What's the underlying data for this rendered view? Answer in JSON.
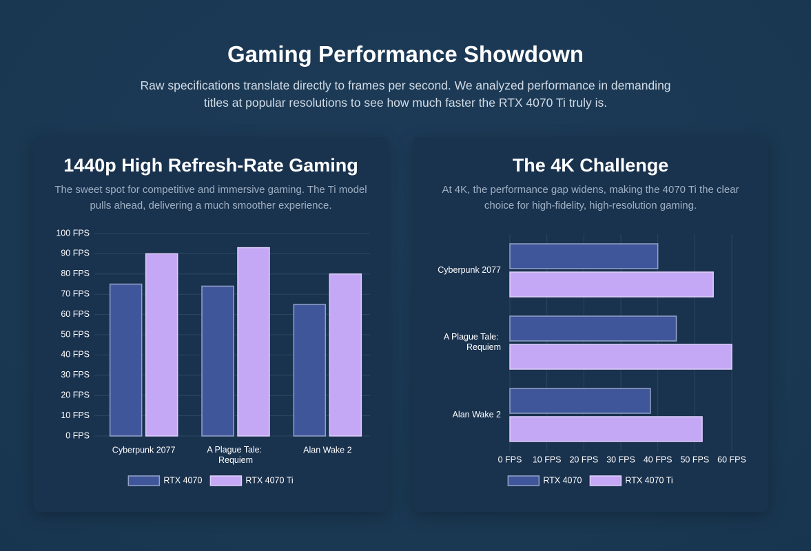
{
  "header": {
    "title": "Gaming Performance Showdown",
    "subtitle": "Raw specifications translate directly to frames per second. We analyzed performance in demanding titles at popular resolutions to see how much faster the RTX 4070 Ti truly is."
  },
  "chart_data": [
    {
      "type": "bar",
      "title": "1440p High Refresh-Rate Gaming",
      "subtitle": "The sweet spot for competitive and immersive gaming. The Ti model pulls ahead, delivering a much smoother experience.",
      "categories": [
        "Cyberpunk 2077",
        "A Plague Tale: Requiem",
        "Alan Wake 2"
      ],
      "series": [
        {
          "name": "RTX 4070",
          "color": "#3f569a",
          "values": [
            75,
            74,
            65
          ]
        },
        {
          "name": "RTX 4070 Ti",
          "color": "#c4a8f5",
          "values": [
            90,
            93,
            80
          ]
        }
      ],
      "ylim": [
        0,
        100
      ],
      "yticks": [
        {
          "value": 0,
          "label": "0 FPS"
        },
        {
          "value": 10,
          "label": "10 FPS"
        },
        {
          "value": 20,
          "label": "20 FPS"
        },
        {
          "value": 30,
          "label": "30 FPS"
        },
        {
          "value": 40,
          "label": "40 FPS"
        },
        {
          "value": 50,
          "label": "50 FPS"
        },
        {
          "value": 60,
          "label": "60 FPS"
        },
        {
          "value": 70,
          "label": "70 FPS"
        },
        {
          "value": 80,
          "label": "80 FPS"
        },
        {
          "value": 90,
          "label": "90 FPS"
        },
        {
          "value": 100,
          "label": "100 FPS"
        }
      ],
      "grid": true,
      "legend": "bottom"
    },
    {
      "type": "barh",
      "title": "The 4K Challenge",
      "subtitle": "At 4K, the performance gap widens, making the 4070 Ti the clear choice for high-fidelity, high-resolution gaming.",
      "categories": [
        "Cyberpunk 2077",
        "A Plague Tale: Requiem",
        "Alan Wake 2"
      ],
      "series": [
        {
          "name": "RTX 4070",
          "color": "#3f569a",
          "values": [
            40,
            45,
            38
          ]
        },
        {
          "name": "RTX 4070 Ti",
          "color": "#c4a8f5",
          "values": [
            55,
            60,
            52
          ]
        }
      ],
      "xlim": [
        0,
        60
      ],
      "xticks": [
        {
          "value": 0,
          "label": "0 FPS"
        },
        {
          "value": 10,
          "label": "10 FPS"
        },
        {
          "value": 20,
          "label": "20 FPS"
        },
        {
          "value": 30,
          "label": "30 FPS"
        },
        {
          "value": 40,
          "label": "40 FPS"
        },
        {
          "value": 50,
          "label": "50 FPS"
        },
        {
          "value": 60,
          "label": "60 FPS"
        }
      ],
      "grid": true,
      "legend": "bottom"
    }
  ]
}
